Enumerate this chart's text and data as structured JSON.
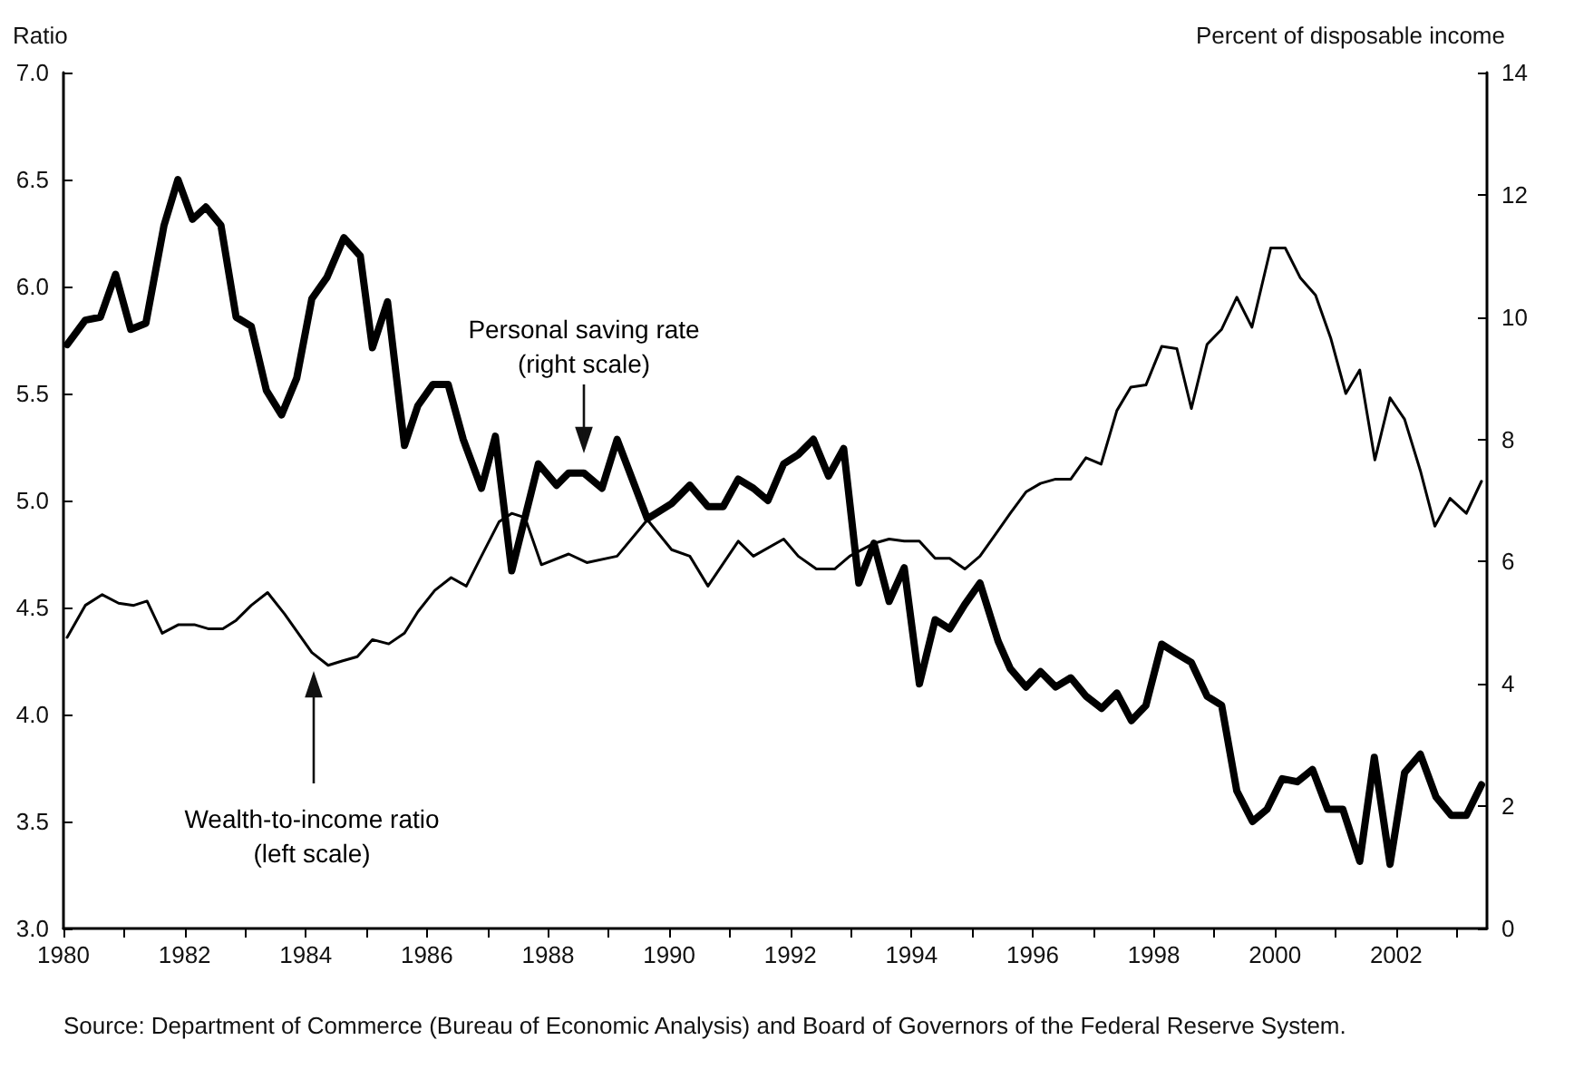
{
  "chart_data": {
    "type": "line",
    "ylabel": "Ratio",
    "y2label": "Percent of disposable income",
    "annotations": [
      "Source: Department of Commerce (Bureau of Economic Analysis) and Board of Governors of the Federal Reserve System."
    ],
    "xlim": [
      1980,
      2003.5
    ],
    "xticks": [
      {
        "value": 1980,
        "label": "1980"
      },
      {
        "value": 1981,
        "label": null
      },
      {
        "value": 1982,
        "label": "1982"
      },
      {
        "value": 1983,
        "label": null
      },
      {
        "value": 1984,
        "label": "1984"
      },
      {
        "value": 1985,
        "label": null
      },
      {
        "value": 1986,
        "label": "1986"
      },
      {
        "value": 1987,
        "label": null
      },
      {
        "value": 1988,
        "label": "1988"
      },
      {
        "value": 1989,
        "label": null
      },
      {
        "value": 1990,
        "label": "1990"
      },
      {
        "value": 1991,
        "label": null
      },
      {
        "value": 1992,
        "label": "1992"
      },
      {
        "value": 1993,
        "label": null
      },
      {
        "value": 1994,
        "label": "1994"
      },
      {
        "value": 1995,
        "label": null
      },
      {
        "value": 1996,
        "label": "1996"
      },
      {
        "value": 1997,
        "label": null
      },
      {
        "value": 1998,
        "label": "1998"
      },
      {
        "value": 1999,
        "label": null
      },
      {
        "value": 2000,
        "label": "2000"
      },
      {
        "value": 2001,
        "label": null
      },
      {
        "value": 2002,
        "label": "2002"
      },
      {
        "value": 2003,
        "label": null
      }
    ],
    "ylim": [
      3,
      7
    ],
    "yticks": [
      {
        "value": 3,
        "label": "3.0"
      },
      {
        "value": 3.5,
        "label": "3.5"
      },
      {
        "value": 4,
        "label": "4.0"
      },
      {
        "value": 4.5,
        "label": "4.5"
      },
      {
        "value": 5,
        "label": "5.0"
      },
      {
        "value": 5.5,
        "label": "5.5"
      },
      {
        "value": 6,
        "label": "6.0"
      },
      {
        "value": 6.5,
        "label": "6.5"
      },
      {
        "value": 7,
        "label": "7.0"
      }
    ],
    "y2lim": [
      0,
      14
    ],
    "y2ticks": [
      0,
      2,
      4,
      6,
      8,
      10,
      12,
      14
    ],
    "grid": false,
    "marker": "none",
    "line_style": "solid",
    "series": [
      {
        "name": "Wealth-to-income ratio\n(left scale)",
        "color": "#000000",
        "axis": "y",
        "x": [
          1980.06,
          1980.36,
          1980.64,
          1980.91,
          1981.16,
          1981.38,
          1981.63,
          1981.9,
          1982.16,
          1982.4,
          1982.63,
          1982.85,
          1983.1,
          1983.37,
          1983.65,
          1984.1,
          1984.37,
          1984.6,
          1984.85,
          1985.1,
          1985.37,
          1985.63,
          1985.85,
          1986.13,
          1986.4,
          1986.65,
          1986.9,
          1987.19,
          1987.4,
          1987.62,
          1987.89,
          1988.34,
          1988.64,
          1989.14,
          1989.64,
          1990.04,
          1990.34,
          1990.64,
          1991.14,
          1991.39,
          1991.89,
          1992.13,
          1992.43,
          1992.73,
          1992.98,
          1993.38,
          1993.63,
          1993.88,
          1994.13,
          1994.39,
          1994.63,
          1994.88,
          1995.13,
          1995.38,
          1995.63,
          1995.89,
          1996.13,
          1996.38,
          1996.63,
          1996.88,
          1997.13,
          1997.39,
          1997.62,
          1997.87,
          1998.13,
          1998.38,
          1998.62,
          1998.88,
          1999.12,
          1999.37,
          1999.62,
          1999.93,
          2000.17,
          2000.42,
          2000.67,
          2000.92,
          2001.17,
          2001.4,
          2001.65,
          2001.9,
          2002.14,
          2002.4,
          2002.64,
          2002.89,
          2003.16,
          2003.41
        ],
        "values": [
          4.36,
          4.51,
          4.56,
          4.52,
          4.51,
          4.53,
          4.38,
          4.42,
          4.42,
          4.4,
          4.4,
          4.44,
          4.51,
          4.57,
          4.47,
          4.29,
          4.23,
          4.25,
          4.27,
          4.35,
          4.33,
          4.38,
          4.48,
          4.58,
          4.64,
          4.6,
          4.74,
          4.9,
          4.94,
          4.92,
          4.7,
          4.75,
          4.71,
          4.74,
          4.91,
          4.77,
          4.74,
          4.6,
          4.81,
          4.74,
          4.82,
          4.74,
          4.68,
          4.68,
          4.74,
          4.8,
          4.82,
          4.81,
          4.81,
          4.73,
          4.73,
          4.68,
          4.74,
          4.84,
          4.94,
          5.04,
          5.08,
          5.1,
          5.1,
          5.2,
          5.17,
          5.42,
          5.53,
          5.54,
          5.72,
          5.71,
          5.43,
          5.73,
          5.8,
          5.95,
          5.81,
          6.18,
          6.18,
          6.04,
          5.96,
          5.76,
          5.5,
          5.61,
          5.19,
          5.48,
          5.38,
          5.14,
          4.88,
          5.01,
          4.94,
          5.09
        ]
      },
      {
        "name": "Personal saving rate\n(right scale)",
        "color": "#000000",
        "axis": "y2",
        "x": [
          1980.06,
          1980.36,
          1980.61,
          1980.86,
          1981.11,
          1981.36,
          1981.66,
          1981.89,
          1982.13,
          1982.35,
          1982.6,
          1982.85,
          1983.1,
          1983.35,
          1983.6,
          1983.85,
          1984.1,
          1984.35,
          1984.63,
          1984.9,
          1985.1,
          1985.35,
          1985.63,
          1985.85,
          1986.1,
          1986.35,
          1986.6,
          1986.9,
          1987.13,
          1987.4,
          1987.84,
          1988.14,
          1988.34,
          1988.59,
          1988.89,
          1989.14,
          1989.64,
          1990.04,
          1990.34,
          1990.64,
          1990.89,
          1991.14,
          1991.39,
          1991.63,
          1991.89,
          1992.13,
          1992.38,
          1992.63,
          1992.88,
          1993.13,
          1993.38,
          1993.63,
          1993.88,
          1994.13,
          1994.39,
          1994.63,
          1994.88,
          1995.13,
          1995.43,
          1995.63,
          1995.89,
          1996.13,
          1996.38,
          1996.63,
          1996.88,
          1997.14,
          1997.39,
          1997.63,
          1997.87,
          1998.13,
          1998.37,
          1998.62,
          1998.88,
          1999.12,
          1999.37,
          1999.63,
          1999.87,
          2000.12,
          2000.37,
          2000.62,
          2000.87,
          2001.12,
          2001.4,
          2001.64,
          2001.9,
          2002.14,
          2002.4,
          2002.66,
          2002.91,
          2003.16,
          2003.41
        ],
        "values": [
          9.55,
          9.95,
          10.0,
          10.7,
          9.8,
          9.9,
          11.5,
          12.25,
          11.6,
          11.8,
          11.5,
          10.0,
          9.85,
          8.8,
          8.4,
          9.0,
          10.3,
          10.65,
          11.3,
          11.0,
          9.5,
          10.25,
          7.9,
          8.55,
          8.9,
          8.9,
          8.0,
          7.2,
          8.05,
          5.85,
          7.6,
          7.25,
          7.45,
          7.45,
          7.2,
          8.0,
          6.7,
          6.95,
          7.25,
          6.9,
          6.9,
          7.35,
          7.2,
          7.0,
          7.6,
          7.75,
          8.0,
          7.4,
          7.85,
          5.65,
          6.3,
          5.35,
          5.9,
          4.0,
          5.05,
          4.9,
          5.3,
          5.65,
          4.7,
          4.25,
          3.95,
          4.2,
          3.95,
          4.1,
          3.8,
          3.6,
          3.85,
          3.4,
          3.65,
          4.65,
          4.5,
          4.35,
          3.8,
          3.65,
          2.25,
          1.75,
          1.95,
          2.45,
          2.4,
          2.6,
          1.95,
          1.95,
          1.1,
          2.8,
          1.05,
          2.55,
          2.85,
          2.15,
          1.85,
          1.85,
          2.35
        ]
      }
    ]
  }
}
